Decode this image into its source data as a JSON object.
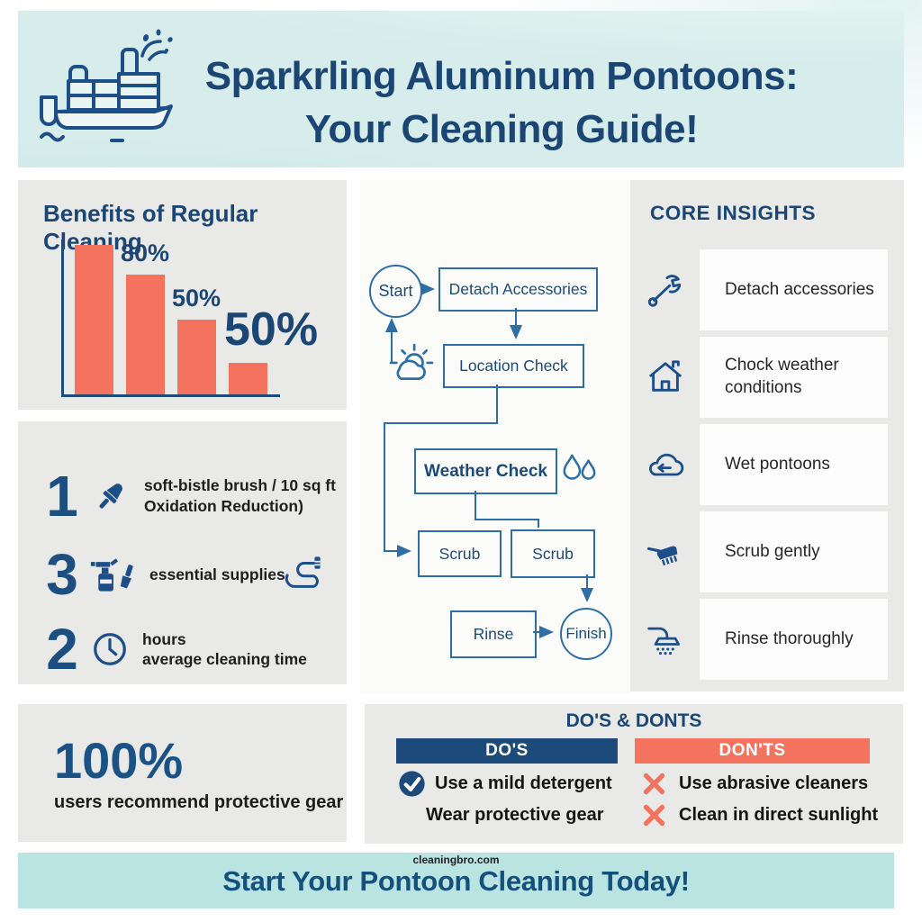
{
  "header": {
    "title_line1": "Sparkrling Aluminum Pontoons:",
    "title_line2": "Your Cleaning Guide!"
  },
  "benefits": {
    "title": "Benefits of Regular Cleaning"
  },
  "chart_data": {
    "type": "bar",
    "categories": [
      "bar1",
      "bar2",
      "bar3",
      "bar4"
    ],
    "values": [
      100,
      80,
      50,
      21
    ],
    "bar_labels": [
      "",
      "80%",
      "50%",
      ""
    ],
    "callout_label": "50%",
    "title": "Benefits of Regular Cleaning",
    "xlabel": "",
    "ylabel": "",
    "ylim": [
      0,
      100
    ],
    "grid": false,
    "legend": "none",
    "bar_color": "#f4735f",
    "axis_color": "#1d4b79"
  },
  "stats": {
    "items": [
      {
        "number": "1",
        "icon": "paintbrush-icon",
        "line1": "soft-bistle brush / 10 sq ft",
        "line2": "Oxidation Reduction)"
      },
      {
        "number": "3",
        "icon": "spray-bottle-icon",
        "line1": "essential supplies",
        "line2": "",
        "right_icon": "hose-icon"
      },
      {
        "number": "2",
        "icon": "clock-icon",
        "line1": "hours",
        "line2": "average cleaning time"
      }
    ]
  },
  "recommend": {
    "value": "100%",
    "label": "users recommend protective gear"
  },
  "flowchart": {
    "start": "Start",
    "detach": "Detach Accessories",
    "location": "Location Check",
    "weather": "Weather Check",
    "scrub_left": "Scrub",
    "scrub_right": "Scrub",
    "rinse": "Rinse",
    "finish": "Finish"
  },
  "core_insights": {
    "title": "CORE INSIGHTS",
    "items": [
      {
        "icon": "wrench-icon",
        "label": "Detach accessories"
      },
      {
        "icon": "house-icon",
        "label": "Chock weather conditions"
      },
      {
        "icon": "cloud-arrow-icon",
        "label": "Wet pontoons"
      },
      {
        "icon": "scrub-brush-icon",
        "label": "Scrub gently"
      },
      {
        "icon": "shower-icon",
        "label": "Rinse thoroughly"
      }
    ]
  },
  "dos_donts": {
    "title": "DO'S & DONTS",
    "dos_header": "DO'S",
    "donts_header": "DON'TS",
    "dos": [
      {
        "text": "Use a mild detergent",
        "has_icon": true
      },
      {
        "text": "Wear protective gear",
        "has_icon": false
      }
    ],
    "donts": [
      {
        "text": "Use abrasive cleaners",
        "has_icon": true
      },
      {
        "text": "Clean in direct sunlight",
        "has_icon": true
      }
    ]
  },
  "footer": {
    "site": "cleaningbro.com",
    "cta": "Start Your Pontoon Cleaning Today!"
  },
  "colors": {
    "navy": "#1b4674",
    "flow_blue": "#2e6ea6",
    "coral": "#f4735f",
    "teal_header": "#d7edeb",
    "teal_footer": "#b9e4e2",
    "panel_gray": "#e9e9e8",
    "card_white": "#fdfdfd"
  }
}
